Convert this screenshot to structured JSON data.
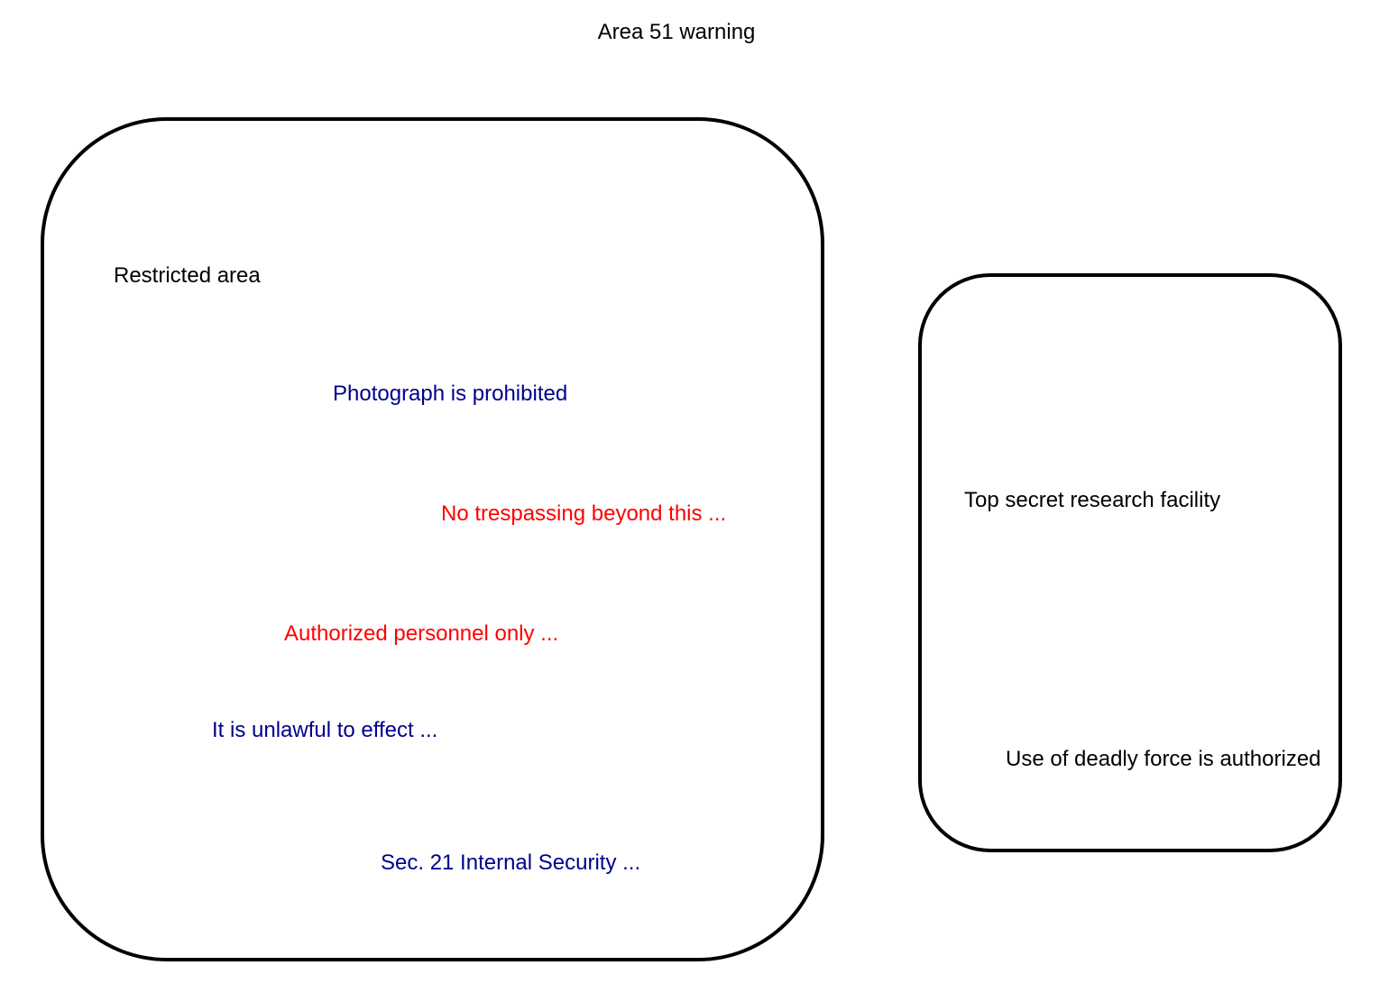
{
  "title": "Area 51 warning",
  "colors": {
    "black": "#000000",
    "blue": "#00008b",
    "red": "#ff0000"
  },
  "left_box": {
    "items": [
      {
        "text": "Restricted area",
        "color": "#000000"
      },
      {
        "text": "Photograph is prohibited",
        "color": "#00008b"
      },
      {
        "text": "No trespassing beyond this ...",
        "color": "#ff0000"
      },
      {
        "text": "Authorized personnel only ...",
        "color": "#ff0000"
      },
      {
        "text": "It is unlawful to effect ...",
        "color": "#00008b"
      },
      {
        "text": "Sec. 21 Internal Security ...",
        "color": "#00008b"
      }
    ]
  },
  "right_box": {
    "items": [
      {
        "text": "Top secret research facility",
        "color": "#000000"
      },
      {
        "text": "Use of deadly force is authorized",
        "color": "#000000"
      }
    ]
  }
}
